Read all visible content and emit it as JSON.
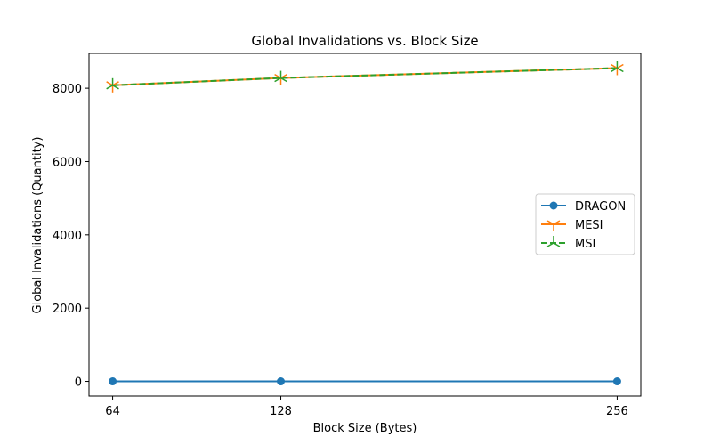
{
  "chart_data": {
    "type": "line",
    "title": "Global Invalidations vs. Block Size",
    "xlabel": "Block Size (Bytes)",
    "ylabel": "Global Invalidations (Quantity)",
    "x": [
      64,
      128,
      256
    ],
    "x_tick_labels": [
      "64",
      "128",
      "256"
    ],
    "xlim": [
      55,
      265
    ],
    "ylim": [
      -400,
      8950
    ],
    "y_ticks": [
      0,
      2000,
      4000,
      6000,
      8000
    ],
    "y_tick_labels": [
      "0",
      "2000",
      "4000",
      "6000",
      "8000"
    ],
    "grid": false,
    "legend_position": "center-right",
    "series": [
      {
        "name": "DRAGON",
        "values": [
          0,
          0,
          0
        ],
        "color": "#1f77b4",
        "line_style": "solid",
        "marker": "circle"
      },
      {
        "name": "MESI",
        "values": [
          8080,
          8280,
          8550
        ],
        "color": "#ff7f0e",
        "line_style": "solid",
        "marker": "tri_down"
      },
      {
        "name": "MSI",
        "values": [
          8080,
          8280,
          8550
        ],
        "color": "#2ca02c",
        "line_style": "dashed",
        "marker": "tri_up"
      }
    ]
  }
}
